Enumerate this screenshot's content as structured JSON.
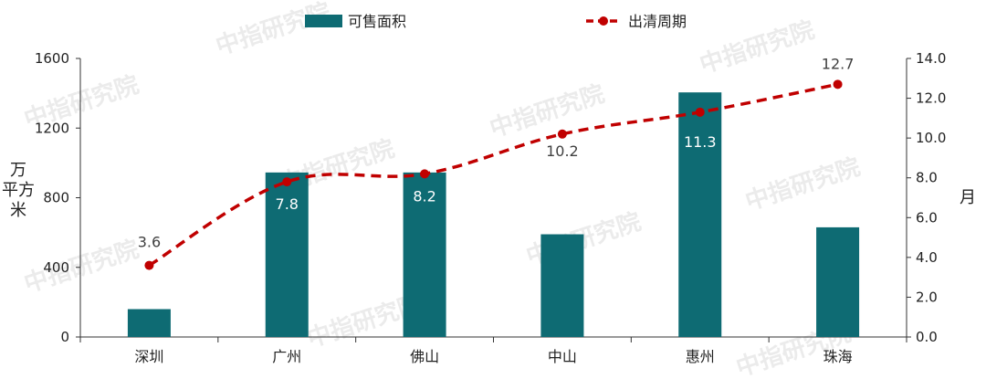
{
  "watermark": "中指研究院",
  "chart_data": {
    "type": "bar+line",
    "categories": [
      "深圳",
      "广州",
      "佛山",
      "中山",
      "惠州",
      "珠海"
    ],
    "series": [
      {
        "name": "可售面积",
        "type": "bar",
        "axis": "left",
        "color": "#0e6b73",
        "values": [
          160,
          945,
          945,
          590,
          1405,
          630
        ]
      },
      {
        "name": "出清周期",
        "type": "line",
        "axis": "right",
        "color": "#c00000",
        "style": "dashed",
        "values": [
          3.6,
          7.8,
          8.2,
          10.2,
          11.3,
          12.7
        ],
        "labels": [
          "3.6",
          "7.8",
          "8.2",
          "10.2",
          "11.3",
          "12.7"
        ]
      }
    ],
    "y_left": {
      "label": "万平方米",
      "ylim": [
        0,
        1600
      ],
      "ticks": [
        "0",
        "400",
        "800",
        "1200",
        "1600"
      ]
    },
    "y_right": {
      "label": "月",
      "ylim": [
        0,
        14
      ],
      "ticks": [
        "0.0",
        "2.0",
        "4.0",
        "6.0",
        "8.0",
        "10.0",
        "12.0",
        "14.0"
      ]
    },
    "legend": {
      "placement": "top-center"
    },
    "grid": false
  }
}
